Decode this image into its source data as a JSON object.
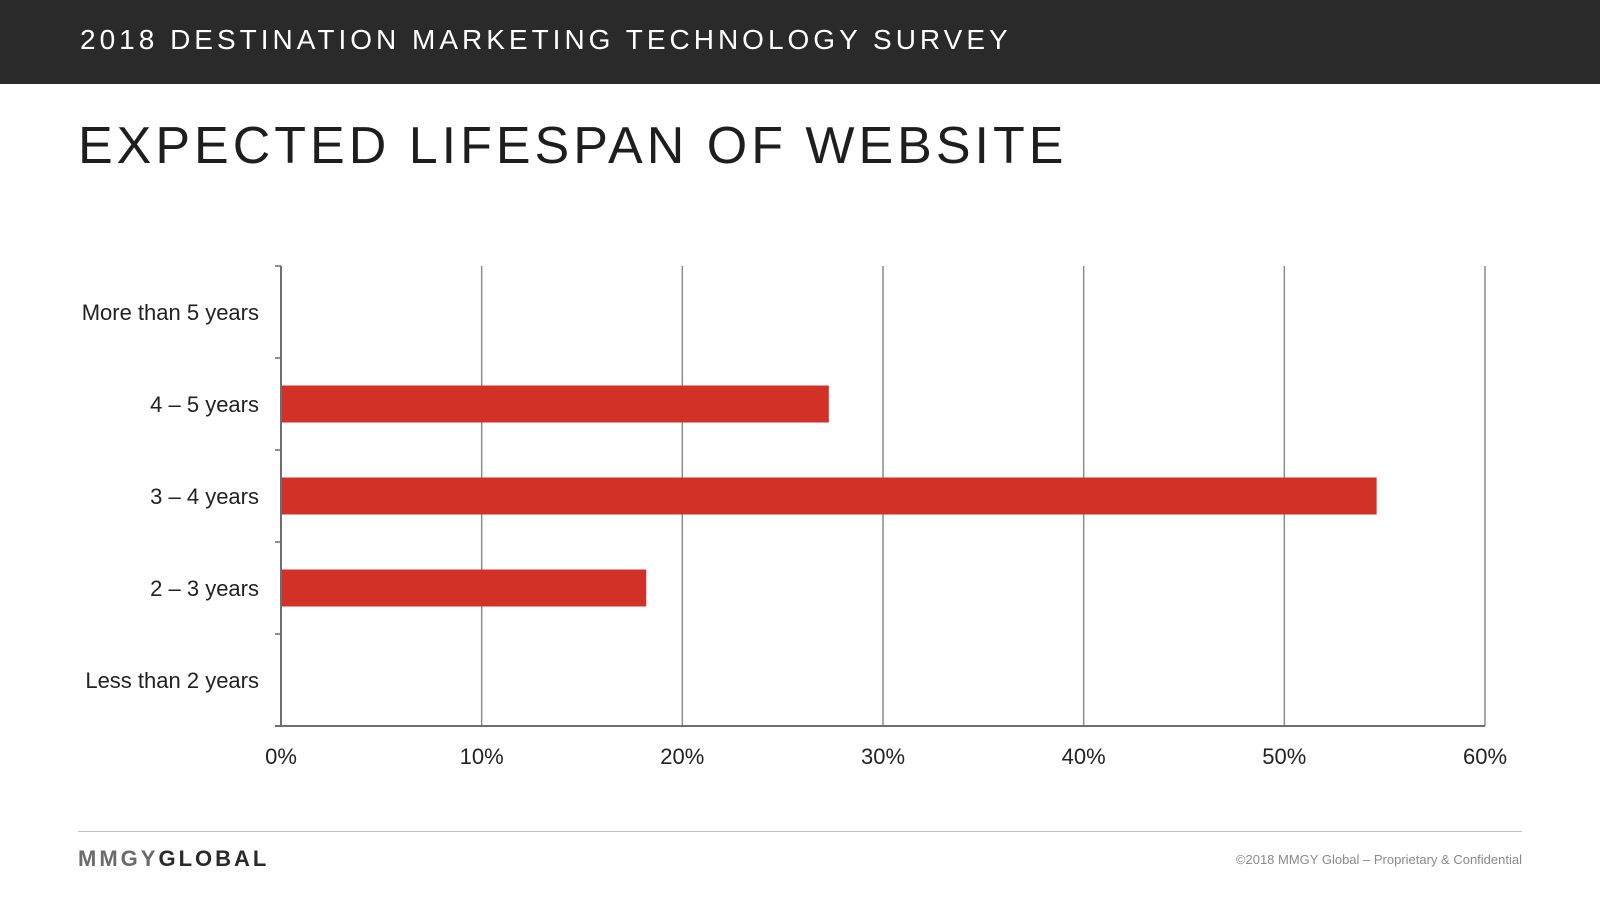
{
  "header": {
    "survey_title": "2018 DESTINATION MARKETING TECHNOLOGY SURVEY"
  },
  "page": {
    "title": "EXPECTED LIFESPAN OF WEBSITE"
  },
  "chart_data": {
    "type": "bar",
    "orientation": "horizontal",
    "categories": [
      "More than 5 years",
      "4 – 5 years",
      "3 – 4 years",
      "2 – 3 years",
      "Less than 2 years"
    ],
    "values": [
      0,
      27.3,
      54.6,
      18.2,
      0
    ],
    "xlim": [
      0,
      60
    ],
    "x_ticks": [
      "0%",
      "10%",
      "20%",
      "30%",
      "40%",
      "50%",
      "60%"
    ],
    "grid": "vertical",
    "legend": "none",
    "bar_color": "#d23127",
    "grid_color": "#8c8c8c"
  },
  "footer": {
    "logo_part_1": "MMGY",
    "logo_part_2": "GLOBAL",
    "copyright": "©2018 MMGY Global – Proprietary & Confidential"
  }
}
